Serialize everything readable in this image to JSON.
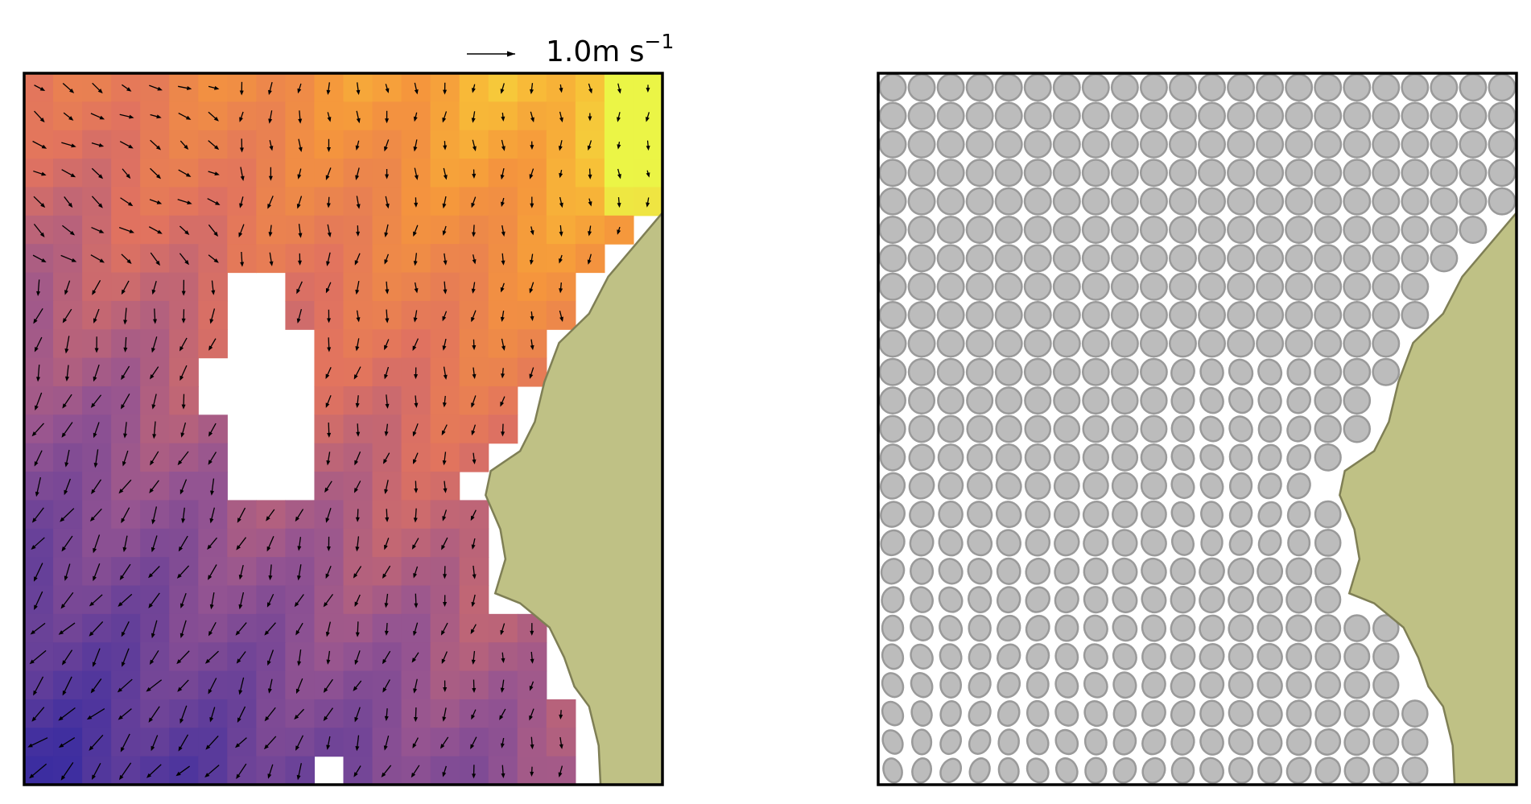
{
  "chart_data": {
    "type": "quiver",
    "key_label": "1.0m s",
    "key_exponent": "−1"
  }
}
